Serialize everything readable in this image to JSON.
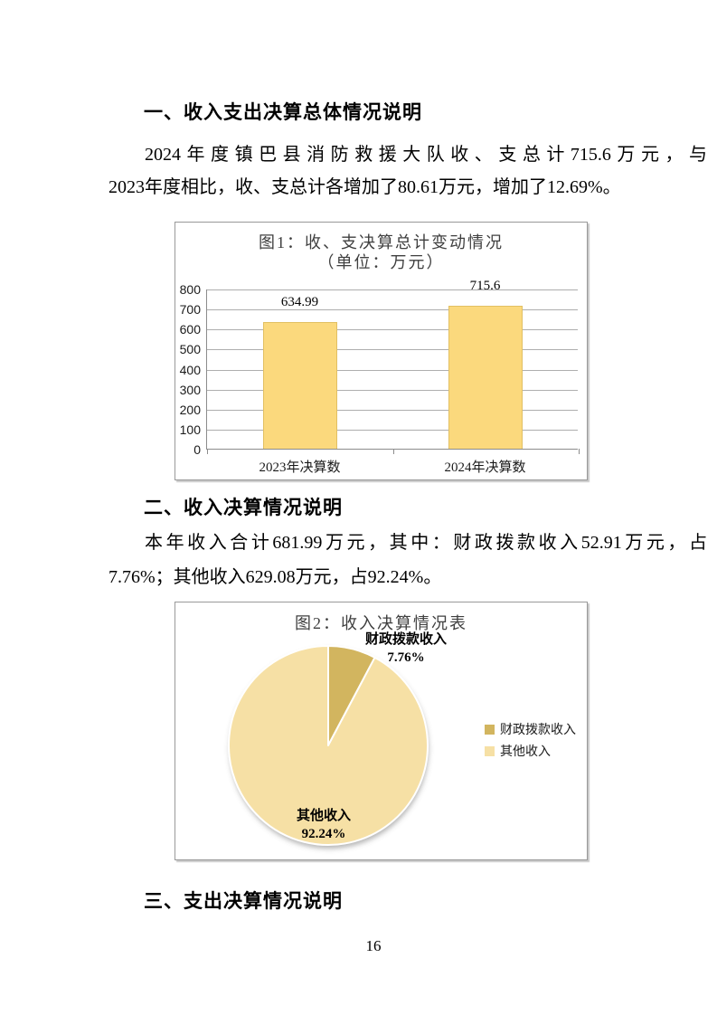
{
  "page": {
    "number": "16"
  },
  "sections": {
    "s1": {
      "heading": "一、收入支出决算总体情况说明",
      "para_line1": "2024年度镇巴县消防救援大队收、支总计715.6万元，与",
      "para_line2": "2023年度相比，收、支总计各增加了80.61万元，增加了12.69%。"
    },
    "s2": {
      "heading": "二、收入决算情况说明",
      "para_line1": "本年收入合计681.99万元，其中：财政拨款收入52.91万元，占",
      "para_line2": "7.76%；其他收入629.08万元，占92.24%。"
    },
    "s3": {
      "heading": "三、支出决算情况说明"
    }
  },
  "chart_data": [
    {
      "type": "bar",
      "title": "图1：收、支决算总计变动情况",
      "subtitle": "（单位：万元）",
      "categories": [
        "2023年决算数",
        "2024年决算数"
      ],
      "values": [
        634.99,
        715.6
      ],
      "value_labels": [
        "634.99",
        "715.6"
      ],
      "xlabel": "",
      "ylabel": "",
      "ylim": [
        0,
        800
      ],
      "ytick_step": 100,
      "grid": true,
      "bar_color": "#FBD97D",
      "bar_border": "#E2C063"
    },
    {
      "type": "pie",
      "title": "图2：收入决算情况表",
      "slices": [
        {
          "label": "财政拨款收入",
          "pct": 7.76,
          "pct_label": "7.76%",
          "color": "#D2B55F"
        },
        {
          "label": "其他收入",
          "pct": 92.24,
          "pct_label": "92.24%",
          "color": "#F6E0A5"
        }
      ],
      "legend_position": "right",
      "start_angle_deg": -90
    }
  ]
}
